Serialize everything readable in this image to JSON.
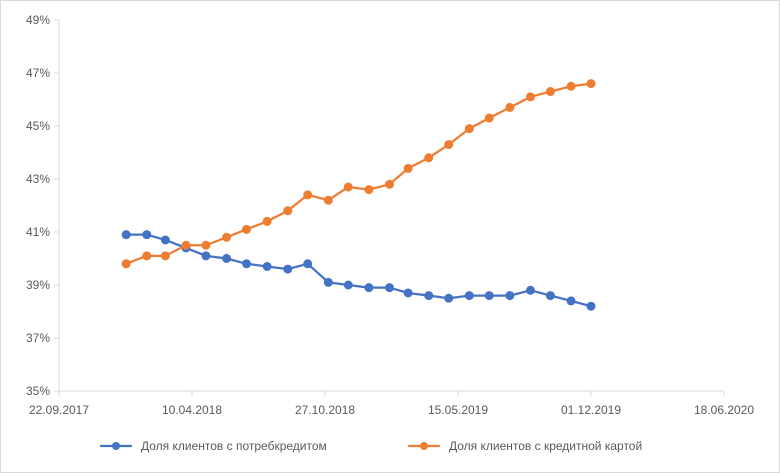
{
  "chart_data": {
    "type": "line",
    "title": "",
    "xlabel": "",
    "ylabel": "",
    "x_axis_type": "date",
    "xlim": [
      "2017-09-22",
      "2020-06-18"
    ],
    "x_ticks": [
      "2017-09-22",
      "2018-04-10",
      "2018-10-27",
      "2019-05-15",
      "2019-12-01",
      "2020-06-18"
    ],
    "x_tick_labels": [
      "22.09.2017",
      "10.04.2018",
      "27.10.2018",
      "15.05.2019",
      "01.12.2019",
      "18.06.2020"
    ],
    "ylim": [
      35,
      49
    ],
    "y_ticks": [
      35,
      37,
      39,
      41,
      43,
      45,
      47,
      49
    ],
    "y_tick_labels": [
      "35%",
      "37%",
      "39%",
      "41%",
      "43%",
      "45%",
      "47%",
      "49%"
    ],
    "grid": false,
    "legend_position": "bottom",
    "x": [
      "2018-01-01",
      "2018-02-01",
      "2018-03-01",
      "2018-04-01",
      "2018-05-01",
      "2018-06-01",
      "2018-07-01",
      "2018-08-01",
      "2018-09-01",
      "2018-10-01",
      "2018-11-01",
      "2018-12-01",
      "2019-01-01",
      "2019-02-01",
      "2019-03-01",
      "2019-04-01",
      "2019-05-01",
      "2019-06-01",
      "2019-07-01",
      "2019-08-01",
      "2019-09-01",
      "2019-10-01",
      "2019-11-01",
      "2019-12-01"
    ],
    "series": [
      {
        "name": "Доля клиентов с потребкредитом",
        "color": "#4472c4",
        "values": [
          40.9,
          40.9,
          40.7,
          40.4,
          40.1,
          40.0,
          39.8,
          39.7,
          39.6,
          39.8,
          39.1,
          39.0,
          38.9,
          38.9,
          38.7,
          38.6,
          38.5,
          38.6,
          38.6,
          38.6,
          38.8,
          38.6,
          38.4,
          38.2
        ]
      },
      {
        "name": "Доля клиентов с кредитной картой",
        "color": "#ed7d31",
        "values": [
          39.8,
          40.1,
          40.1,
          40.5,
          40.5,
          40.8,
          41.1,
          41.4,
          41.8,
          42.4,
          42.2,
          42.7,
          42.6,
          42.8,
          43.4,
          43.8,
          44.3,
          44.9,
          45.3,
          45.7,
          46.1,
          46.3,
          46.5,
          46.6
        ]
      }
    ]
  }
}
